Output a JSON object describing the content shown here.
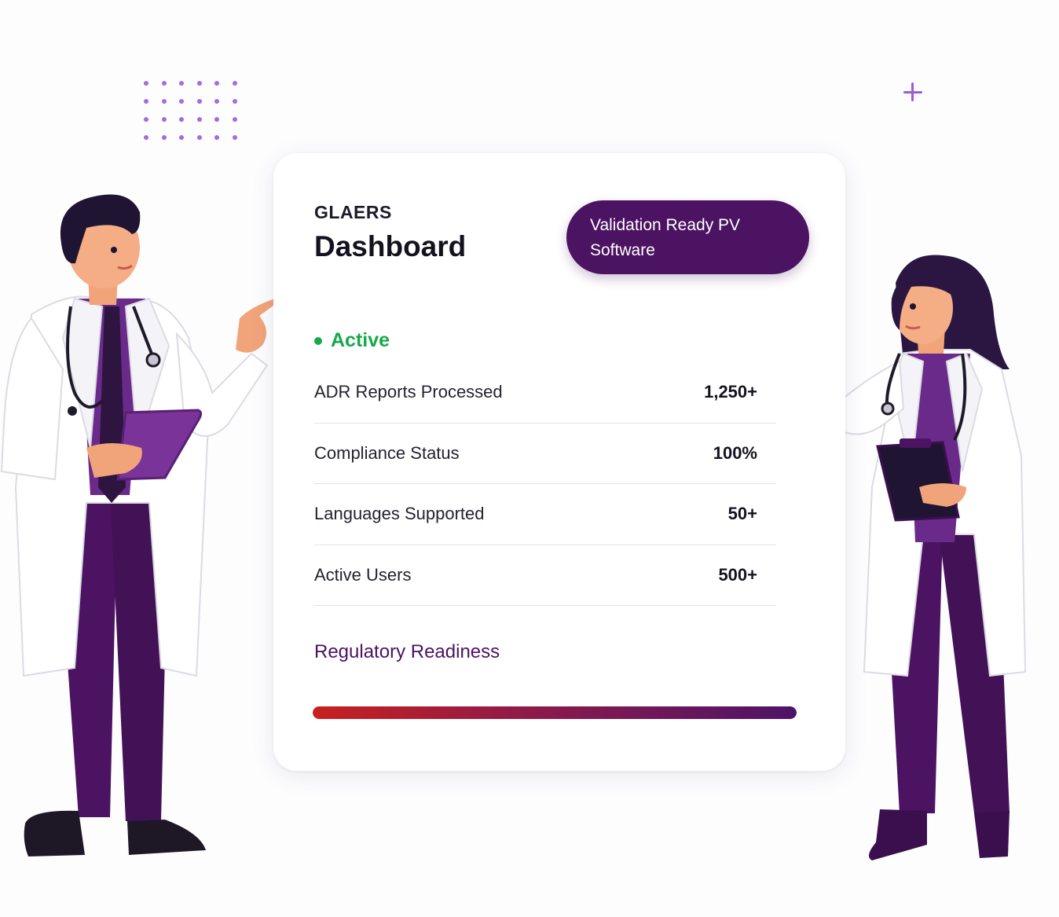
{
  "brand": "GLAERS",
  "title": "Dashboard",
  "badge": {
    "line1": "Validation Ready PV",
    "line2": "Software"
  },
  "status": {
    "label": "Active",
    "color": "#17a94a"
  },
  "metrics": [
    {
      "label": "ADR Reports Processed",
      "value": "1,250+"
    },
    {
      "label": "Compliance Status",
      "value": "100%"
    },
    {
      "label": "Languages Supported",
      "value": "50+"
    },
    {
      "label": "Active Users",
      "value": "500+"
    }
  ],
  "readiness": {
    "label": "Regulatory Readiness",
    "progress_percent": 100
  },
  "colors": {
    "primary": "#4b1361",
    "accent": "#9b5ad9",
    "success": "#17a94a",
    "bar_start": "#c7211f",
    "bar_end": "#4e1468"
  },
  "icons": [
    "dot-grid-decoration",
    "plus-icon",
    "status-dot-icon",
    "male-doctor-illustration",
    "female-doctor-illustration"
  ]
}
